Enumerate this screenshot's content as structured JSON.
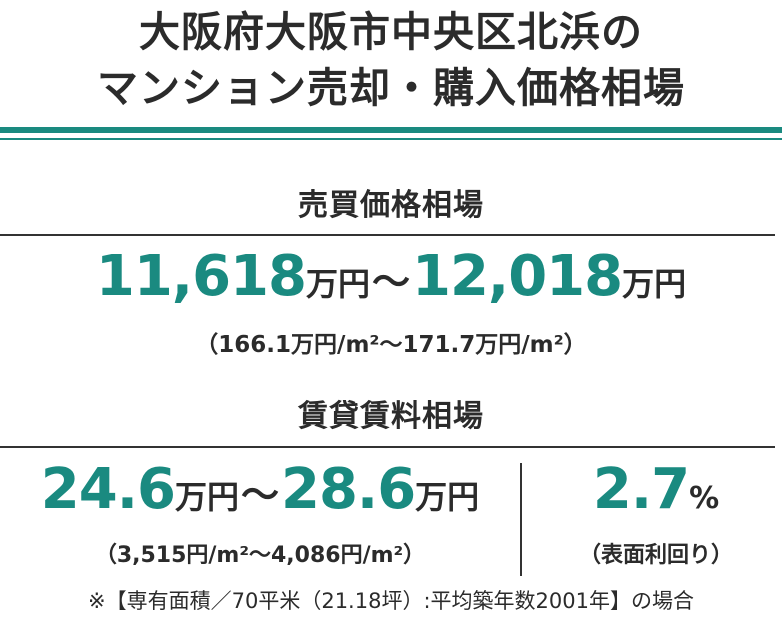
{
  "title": {
    "line1": "大阪府大阪市中央区北浜の",
    "line2": "マンション売却・購入価格相場"
  },
  "sale": {
    "heading": "売買価格相場",
    "min": "11,618",
    "max": "12,018",
    "unit": "万円",
    "tilde": "〜",
    "per_sqm": "（166.1万円/m²〜171.7万円/m²）"
  },
  "rent": {
    "heading": "賃貸賃料相場",
    "min": "24.6",
    "max": "28.6",
    "unit": "万円",
    "tilde": "〜",
    "per_sqm": "（3,515円/m²〜4,086円/m²）"
  },
  "yield": {
    "value": "2.7",
    "unit": "%",
    "label": "（表面利回り）"
  },
  "footnote": "※【専有面積／70平米（21.18坪）:平均築年数2001年】の場合",
  "colors": {
    "accent": "#1a8a80",
    "text": "#2b2b2b",
    "rule": "#1a8a80",
    "divider": "#333333"
  }
}
